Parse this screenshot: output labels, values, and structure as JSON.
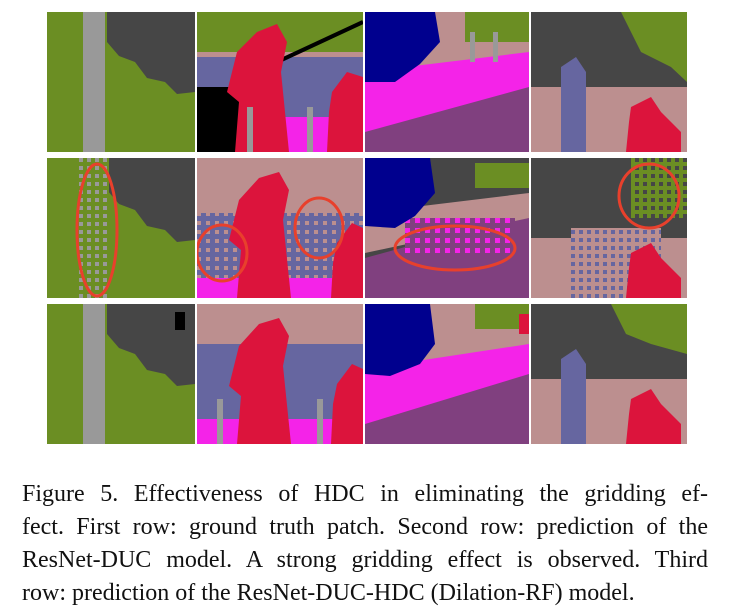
{
  "figure": {
    "rows": [
      "ground truth patch",
      "ResNet-DUC prediction",
      "ResNet-DUC-HDC (Dilation-RF) prediction"
    ],
    "columns": 4
  },
  "caption": {
    "line1": "Figure 5. Effectiveness of HDC in eliminating the gridding ef-",
    "line2": "fect. First row: ground truth patch. Second row: prediction of the",
    "line3": "ResNet-DUC model. A strong gridding effect is observed. Third",
    "line4": "row: prediction of the ResNet-DUC-HDC (Dilation-RF) model."
  },
  "colors": {
    "vegetation": "#6b8e23",
    "building": "#464646",
    "pole": "#999999",
    "person": "#dc143c",
    "sidewalk": "#f423e8",
    "road": "#80407f",
    "wall": "#bc8f8f",
    "fence": "#6666a0",
    "car": "#00008e",
    "highlight": "#e8402c"
  }
}
